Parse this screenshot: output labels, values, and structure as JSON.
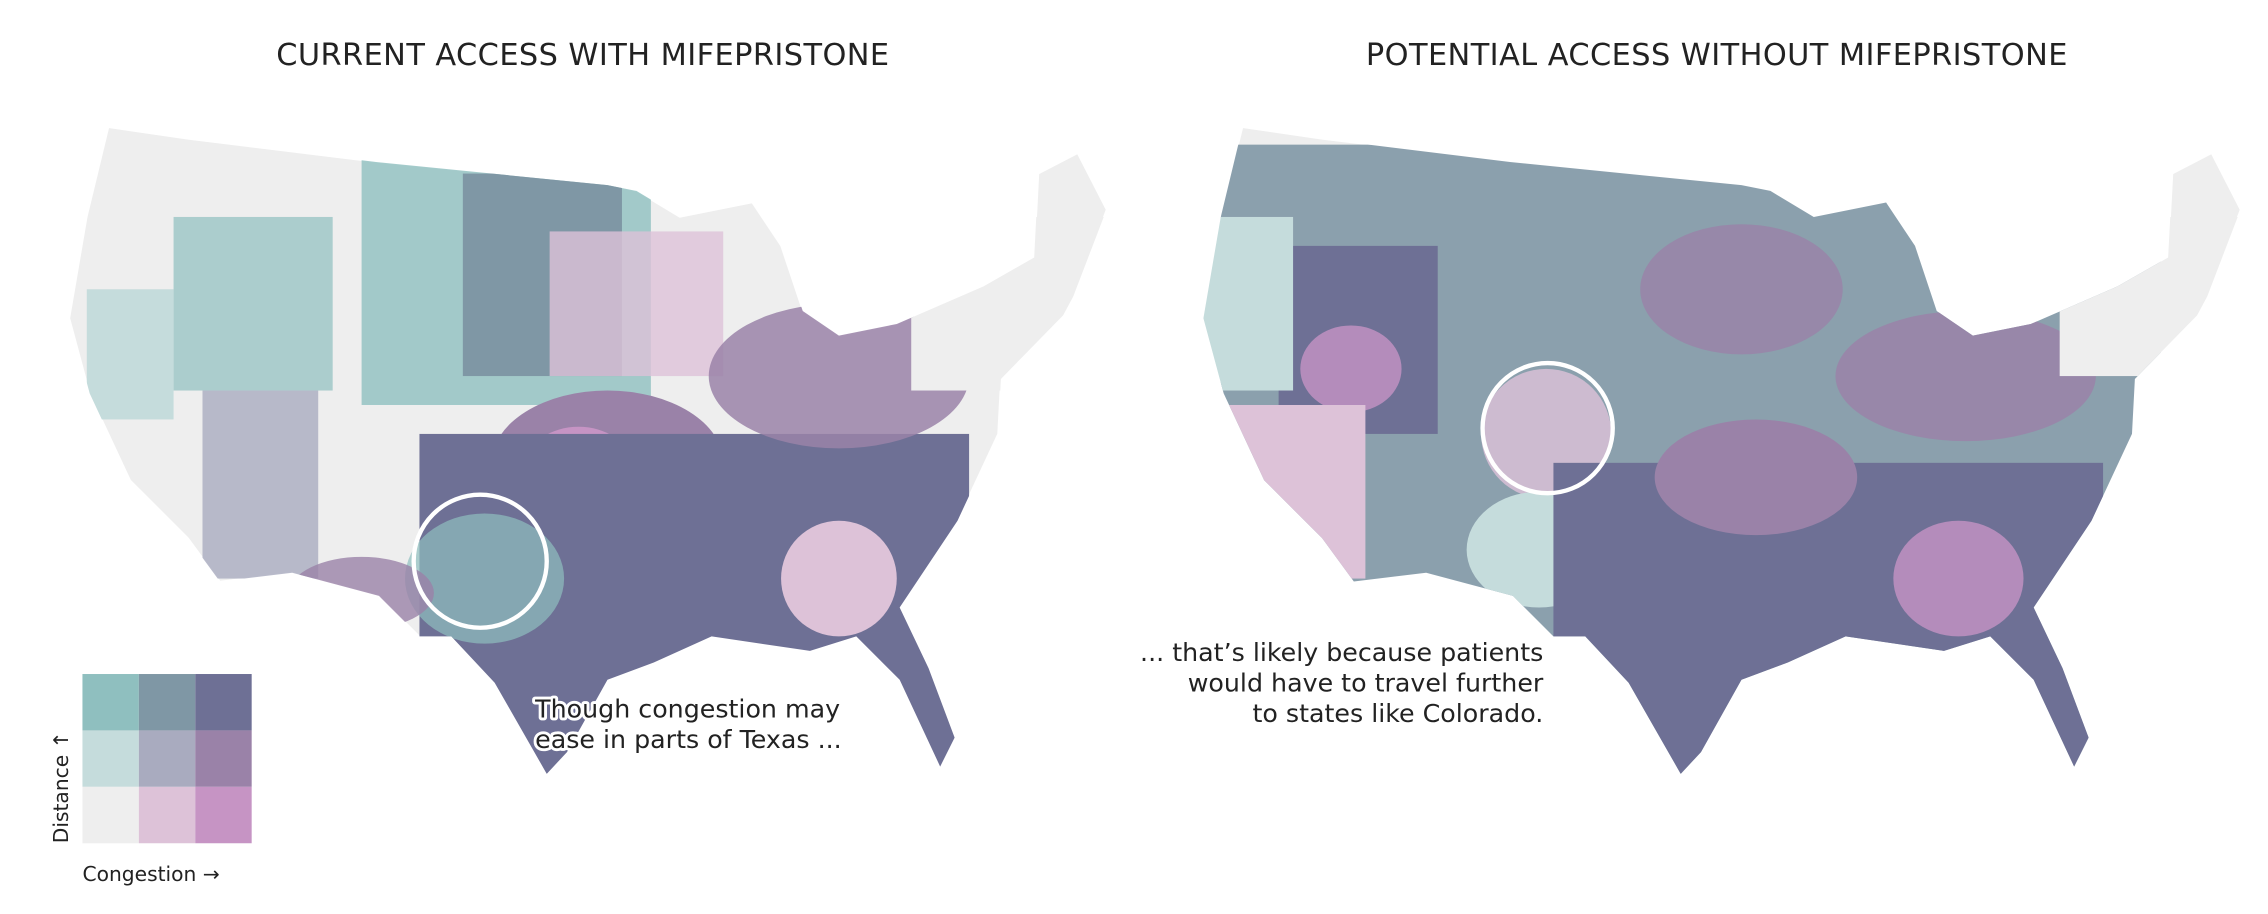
{
  "panels": [
    {
      "title": "CURRENT ACCESS WITH MIFEPRISTONE",
      "annotation": [
        "Though congestion may",
        "ease in parts of Texas ..."
      ]
    },
    {
      "title": "POTENTIAL ACCESS WITHOUT MIFEPRISTONE",
      "annotation": [
        "... that’s likely because patients",
        "would have to travel further",
        "to states like Colorado."
      ]
    }
  ],
  "legend": {
    "y_label": "Distance ↑",
    "x_label": "Congestion →"
  }
}
